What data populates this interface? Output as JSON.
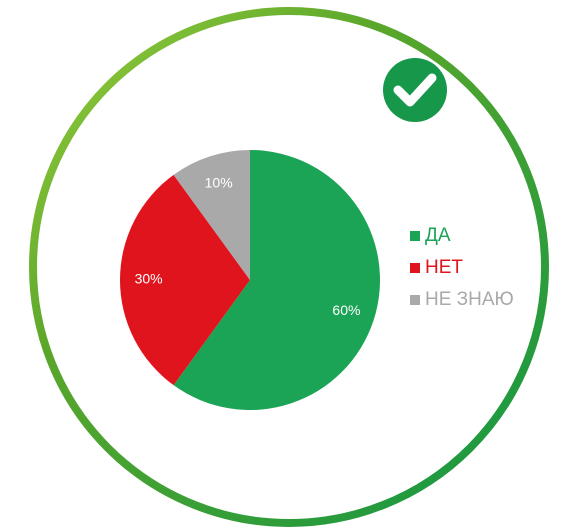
{
  "chart_data": {
    "type": "pie",
    "categories": [
      "ДА",
      "НЕТ",
      "НЕ ЗНАЮ"
    ],
    "values": [
      60,
      30,
      10
    ],
    "value_labels": [
      "60%",
      "30%",
      "10%"
    ],
    "colors": [
      "#1ba356",
      "#e0141c",
      "#a9a9a9"
    ],
    "legend": "right"
  }
}
